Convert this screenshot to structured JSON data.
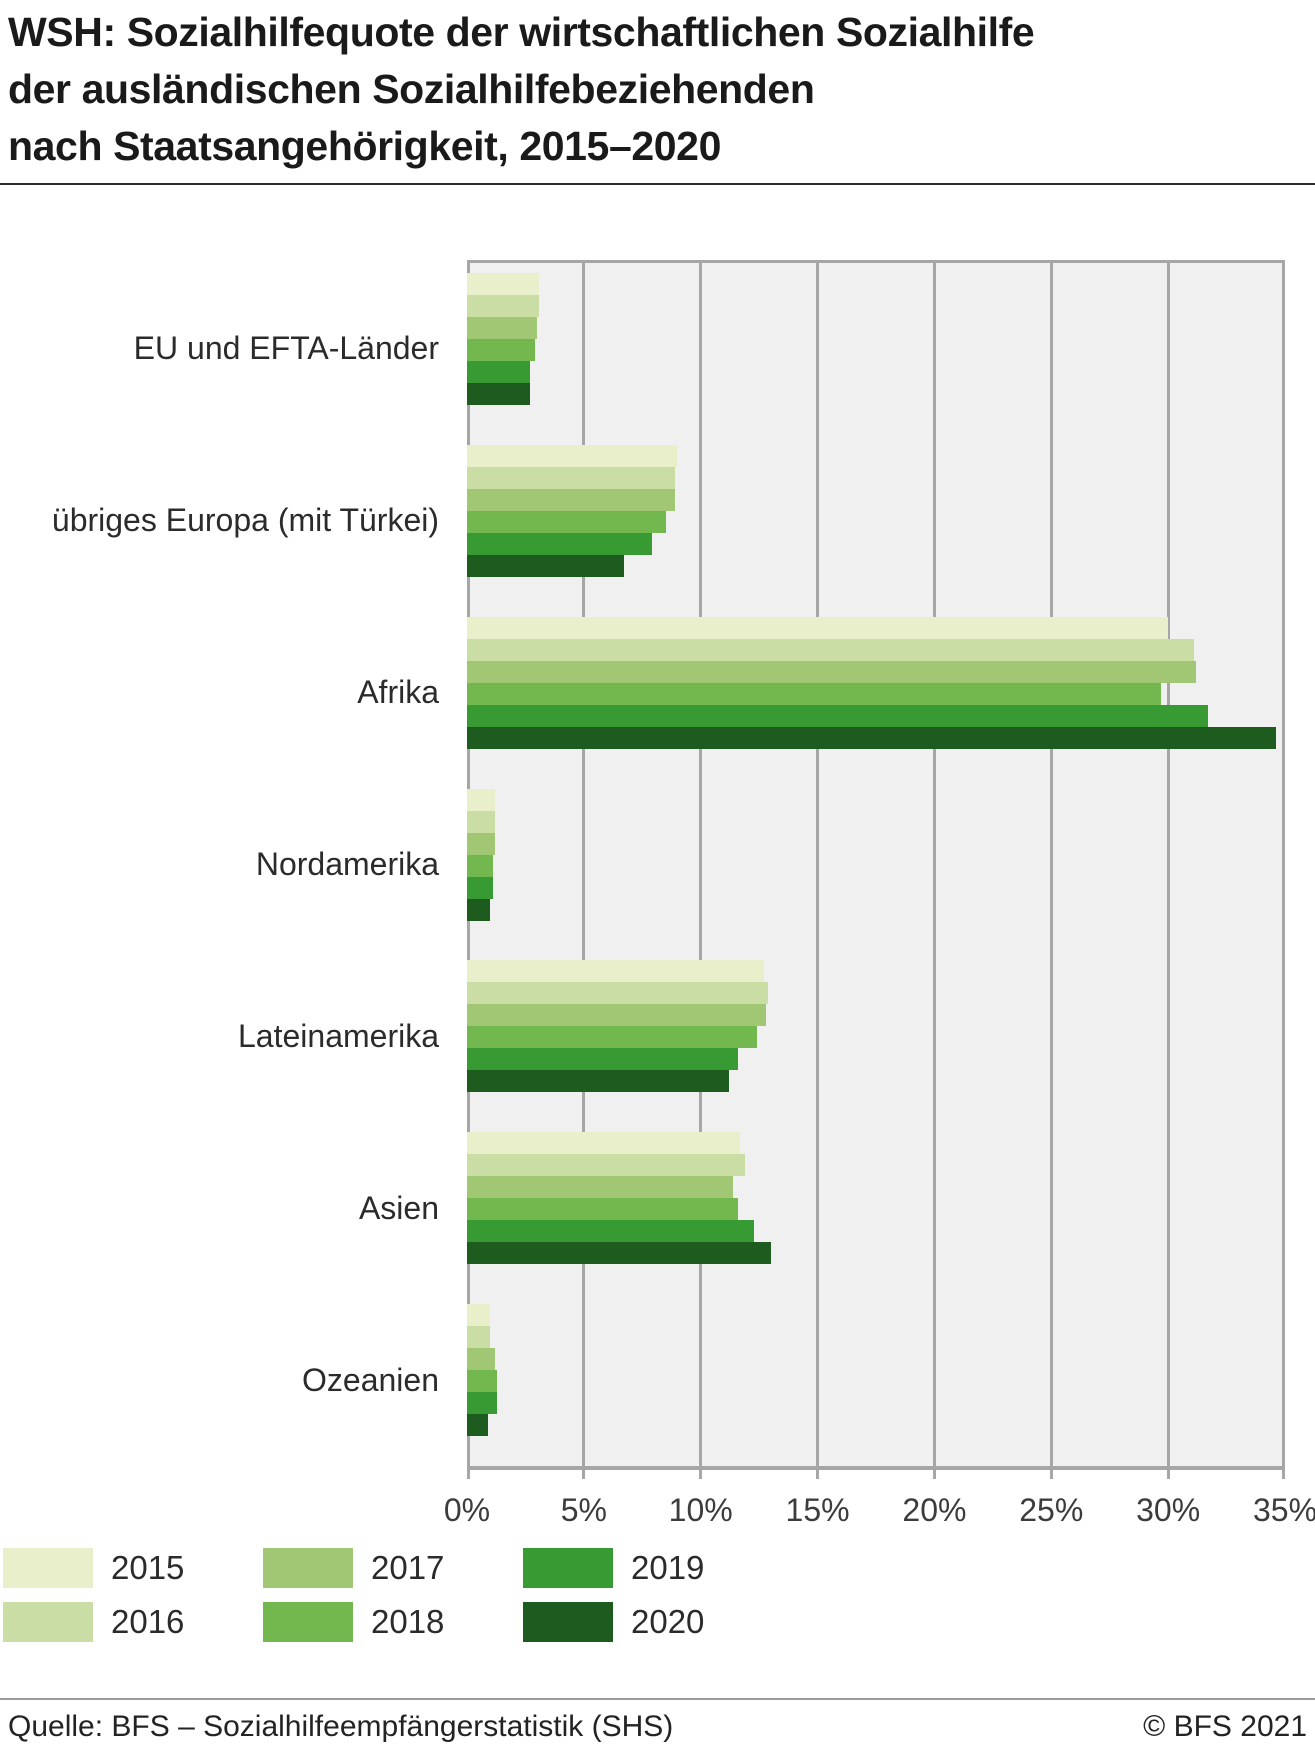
{
  "title": {
    "line1": "WSH: Sozialhilfequote der wirtschaftlichen Sozialhilfe",
    "line2": "der ausländischen Sozialhilfebeziehenden",
    "line3": "nach Staatsangehörigkeit, 2015–2020"
  },
  "chart_data": {
    "type": "bar",
    "orientation": "horizontal",
    "title": "WSH: Sozialhilfequote der wirtschaftlichen Sozialhilfe der ausländischen Sozialhilfebeziehenden nach Staatsangehörigkeit, 2015–2020",
    "unit": "%",
    "categories": [
      "EU und EFTA-Länder",
      "übriges Europa (mit Türkei)",
      "Afrika",
      "Nordamerika",
      "Lateinamerika",
      "Asien",
      "Ozeanien"
    ],
    "series": [
      {
        "name": "2015",
        "color": "#e9efca",
        "values": [
          3.1,
          9.0,
          30.0,
          1.2,
          12.7,
          11.7,
          1.0
        ]
      },
      {
        "name": "2016",
        "color": "#c9dda4",
        "values": [
          3.1,
          8.9,
          31.1,
          1.2,
          12.9,
          11.9,
          1.0
        ]
      },
      {
        "name": "2017",
        "color": "#a1c674",
        "values": [
          3.0,
          8.9,
          31.2,
          1.2,
          12.8,
          11.4,
          1.2
        ]
      },
      {
        "name": "2018",
        "color": "#72b84e",
        "values": [
          2.9,
          8.5,
          29.7,
          1.1,
          12.4,
          11.6,
          1.3
        ]
      },
      {
        "name": "2019",
        "color": "#389a33",
        "values": [
          2.7,
          7.9,
          31.7,
          1.1,
          11.6,
          12.3,
          1.3
        ]
      },
      {
        "name": "2020",
        "color": "#1d5c1e",
        "values": [
          2.7,
          6.7,
          34.6,
          1.0,
          11.2,
          13.0,
          0.9
        ]
      }
    ],
    "x_axis": {
      "min": 0,
      "max": 35,
      "ticks": [
        {
          "label": "0%",
          "value": 0
        },
        {
          "label": "5%",
          "value": 5
        },
        {
          "label": "10%",
          "value": 10
        },
        {
          "label": "15%",
          "value": 15
        },
        {
          "label": "20%",
          "value": 20
        },
        {
          "label": "25%",
          "value": 25
        },
        {
          "label": "30%",
          "value": 30
        },
        {
          "label": "35%",
          "value": 35
        }
      ]
    },
    "grid": true,
    "legend_position": "bottom"
  },
  "footer": {
    "source": "Quelle: BFS – Sozialhilfeempfängerstatistik (SHS)",
    "copyright": "© BFS 2021"
  }
}
